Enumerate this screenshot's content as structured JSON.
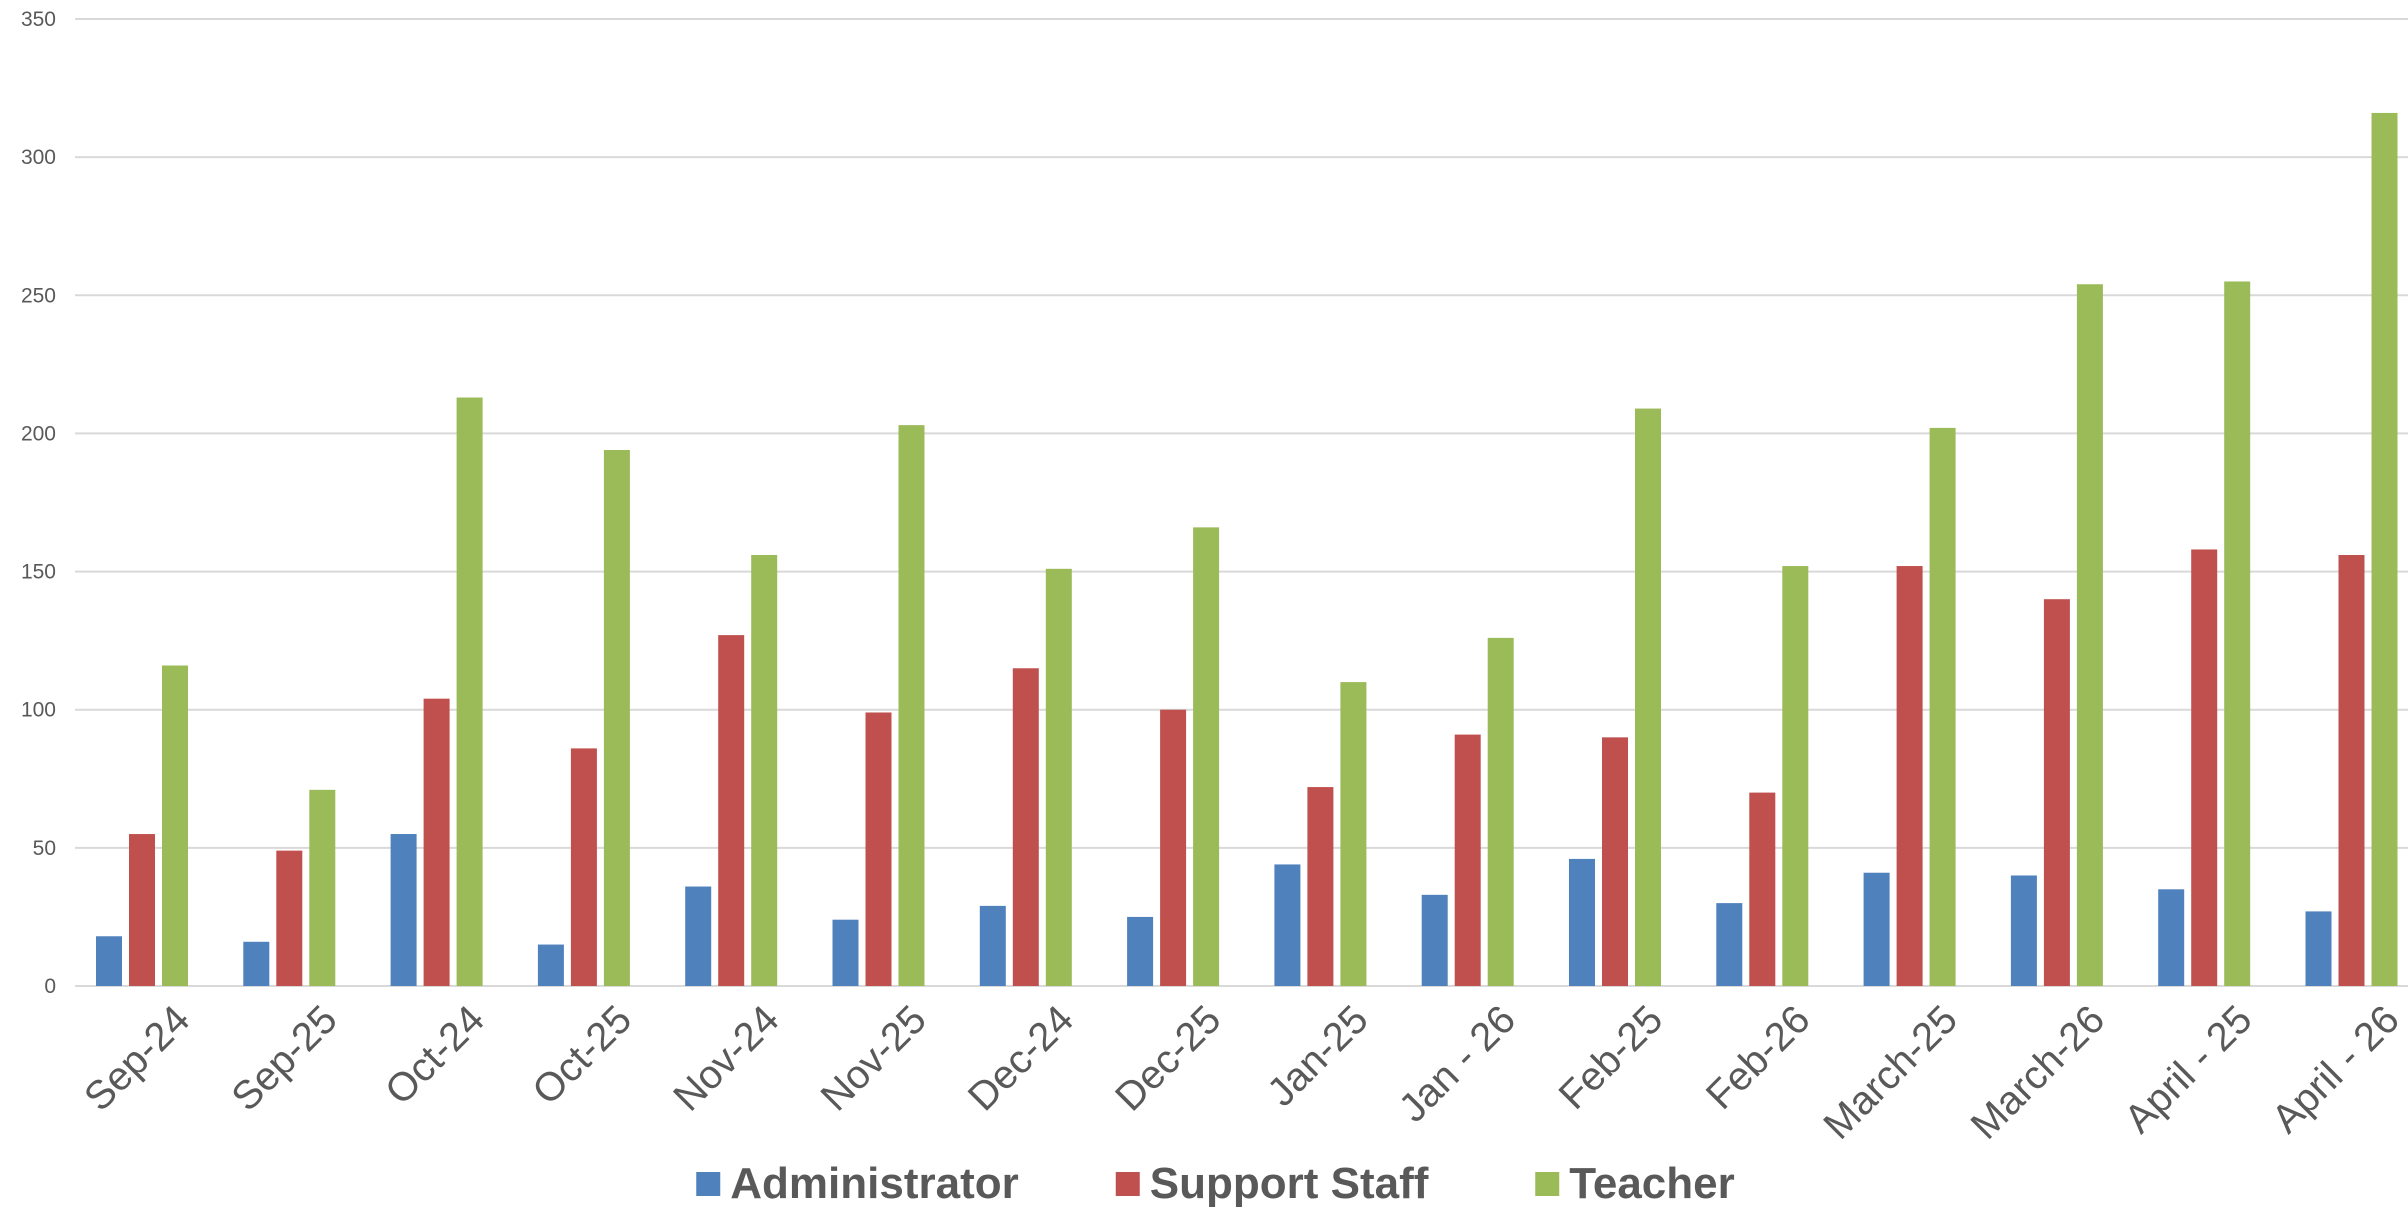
{
  "chart_data": {
    "type": "bar",
    "title": "",
    "xlabel": "",
    "ylabel": "",
    "ylim": [
      0,
      350
    ],
    "yticks": [
      0,
      50,
      100,
      150,
      200,
      250,
      300,
      350
    ],
    "grid": true,
    "legend_position": "bottom",
    "categories": [
      "Sep-24",
      "Sep-25",
      "Oct-24",
      "Oct-25",
      "Nov-24",
      "Nov-25",
      "Dec-24",
      "Dec-25",
      "Jan-25",
      "Jan - 26",
      "Feb-25",
      "Feb-26",
      "March-25",
      "March-26",
      "April - 25",
      "April - 26"
    ],
    "series": [
      {
        "name": "Administrator",
        "color": "#4f81bd",
        "values": [
          18,
          16,
          55,
          15,
          36,
          24,
          29,
          25,
          44,
          33,
          46,
          30,
          41,
          40,
          35,
          27
        ]
      },
      {
        "name": "Support Staff",
        "color": "#c0504d",
        "values": [
          55,
          49,
          104,
          86,
          127,
          99,
          115,
          100,
          72,
          91,
          90,
          70,
          152,
          140,
          158,
          156
        ]
      },
      {
        "name": "Teacher",
        "color": "#9bbb59",
        "values": [
          116,
          71,
          213,
          194,
          156,
          203,
          151,
          166,
          110,
          126,
          209,
          152,
          202,
          254,
          255,
          316
        ]
      }
    ]
  }
}
